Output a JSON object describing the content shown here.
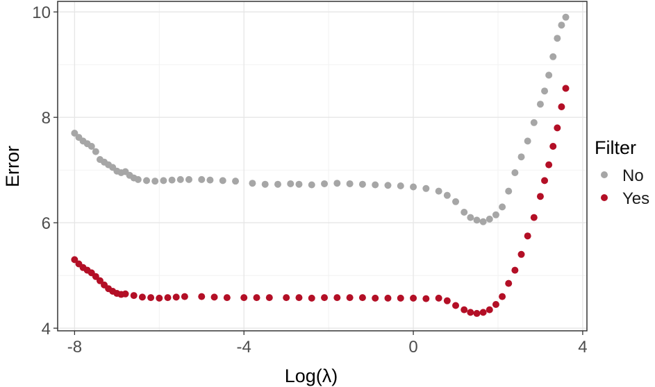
{
  "chart_data": {
    "type": "scatter",
    "xlabel": "Log(λ)",
    "ylabel": "Error",
    "xlim": [
      -8.4,
      4.1
    ],
    "ylim": [
      3.95,
      10.2
    ],
    "x_ticks": [
      -8,
      -4,
      0,
      4
    ],
    "x_tick_labels": [
      "-8",
      "-4",
      "0",
      "4"
    ],
    "y_ticks": [
      4,
      6,
      8,
      10
    ],
    "y_tick_labels": [
      "4",
      "6",
      "8",
      "10"
    ],
    "grid": true,
    "legend": {
      "title": "Filter",
      "position": "right"
    },
    "series": [
      {
        "name": "No",
        "color": "#a6a6a6",
        "points": [
          [
            -8.0,
            7.7
          ],
          [
            -7.9,
            7.62
          ],
          [
            -7.8,
            7.55
          ],
          [
            -7.7,
            7.5
          ],
          [
            -7.6,
            7.45
          ],
          [
            -7.5,
            7.35
          ],
          [
            -7.4,
            7.2
          ],
          [
            -7.3,
            7.15
          ],
          [
            -7.2,
            7.1
          ],
          [
            -7.1,
            7.05
          ],
          [
            -7.0,
            6.98
          ],
          [
            -6.9,
            6.95
          ],
          [
            -6.8,
            6.97
          ],
          [
            -6.7,
            6.9
          ],
          [
            -6.6,
            6.85
          ],
          [
            -6.5,
            6.82
          ],
          [
            -6.3,
            6.8
          ],
          [
            -6.1,
            6.79
          ],
          [
            -5.9,
            6.8
          ],
          [
            -5.7,
            6.81
          ],
          [
            -5.5,
            6.82
          ],
          [
            -5.3,
            6.82
          ],
          [
            -5.0,
            6.82
          ],
          [
            -4.8,
            6.81
          ],
          [
            -4.5,
            6.8
          ],
          [
            -4.2,
            6.79
          ],
          [
            -3.8,
            6.75
          ],
          [
            -3.5,
            6.73
          ],
          [
            -3.2,
            6.73
          ],
          [
            -2.9,
            6.74
          ],
          [
            -2.7,
            6.73
          ],
          [
            -2.4,
            6.72
          ],
          [
            -2.1,
            6.74
          ],
          [
            -1.8,
            6.75
          ],
          [
            -1.5,
            6.74
          ],
          [
            -1.2,
            6.73
          ],
          [
            -0.9,
            6.72
          ],
          [
            -0.6,
            6.71
          ],
          [
            -0.3,
            6.7
          ],
          [
            0.0,
            6.68
          ],
          [
            0.3,
            6.65
          ],
          [
            0.6,
            6.6
          ],
          [
            0.8,
            6.52
          ],
          [
            1.0,
            6.4
          ],
          [
            1.2,
            6.2
          ],
          [
            1.35,
            6.1
          ],
          [
            1.5,
            6.05
          ],
          [
            1.65,
            6.02
          ],
          [
            1.8,
            6.07
          ],
          [
            1.95,
            6.15
          ],
          [
            2.1,
            6.3
          ],
          [
            2.25,
            6.6
          ],
          [
            2.4,
            6.95
          ],
          [
            2.55,
            7.25
          ],
          [
            2.7,
            7.55
          ],
          [
            2.85,
            7.9
          ],
          [
            3.0,
            8.25
          ],
          [
            3.1,
            8.5
          ],
          [
            3.2,
            8.8
          ],
          [
            3.3,
            9.15
          ],
          [
            3.4,
            9.5
          ],
          [
            3.5,
            9.75
          ],
          [
            3.6,
            9.9
          ]
        ]
      },
      {
        "name": "Yes",
        "color": "#b30f26",
        "points": [
          [
            -8.0,
            5.3
          ],
          [
            -7.9,
            5.22
          ],
          [
            -7.8,
            5.15
          ],
          [
            -7.7,
            5.1
          ],
          [
            -7.6,
            5.05
          ],
          [
            -7.5,
            4.98
          ],
          [
            -7.4,
            4.9
          ],
          [
            -7.3,
            4.82
          ],
          [
            -7.2,
            4.75
          ],
          [
            -7.1,
            4.7
          ],
          [
            -7.0,
            4.66
          ],
          [
            -6.9,
            4.64
          ],
          [
            -6.8,
            4.65
          ],
          [
            -6.6,
            4.62
          ],
          [
            -6.4,
            4.59
          ],
          [
            -6.2,
            4.58
          ],
          [
            -6.0,
            4.57
          ],
          [
            -5.8,
            4.58
          ],
          [
            -5.6,
            4.59
          ],
          [
            -5.4,
            4.6
          ],
          [
            -5.0,
            4.6
          ],
          [
            -4.7,
            4.59
          ],
          [
            -4.4,
            4.58
          ],
          [
            -4.0,
            4.58
          ],
          [
            -3.7,
            4.58
          ],
          [
            -3.4,
            4.58
          ],
          [
            -3.0,
            4.58
          ],
          [
            -2.7,
            4.58
          ],
          [
            -2.4,
            4.57
          ],
          [
            -2.1,
            4.58
          ],
          [
            -1.8,
            4.58
          ],
          [
            -1.5,
            4.58
          ],
          [
            -1.2,
            4.58
          ],
          [
            -0.9,
            4.57
          ],
          [
            -0.6,
            4.57
          ],
          [
            -0.3,
            4.57
          ],
          [
            0.0,
            4.57
          ],
          [
            0.3,
            4.56
          ],
          [
            0.6,
            4.57
          ],
          [
            0.8,
            4.52
          ],
          [
            1.0,
            4.43
          ],
          [
            1.2,
            4.35
          ],
          [
            1.35,
            4.3
          ],
          [
            1.5,
            4.28
          ],
          [
            1.65,
            4.3
          ],
          [
            1.8,
            4.35
          ],
          [
            1.95,
            4.45
          ],
          [
            2.1,
            4.6
          ],
          [
            2.25,
            4.85
          ],
          [
            2.4,
            5.1
          ],
          [
            2.55,
            5.4
          ],
          [
            2.7,
            5.75
          ],
          [
            2.85,
            6.1
          ],
          [
            3.0,
            6.5
          ],
          [
            3.1,
            6.8
          ],
          [
            3.2,
            7.1
          ],
          [
            3.3,
            7.45
          ],
          [
            3.4,
            7.8
          ],
          [
            3.5,
            8.2
          ],
          [
            3.6,
            8.55
          ]
        ]
      }
    ]
  }
}
